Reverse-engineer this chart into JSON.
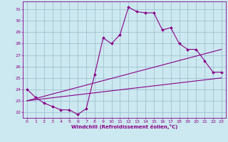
{
  "xlabel": "Windchill (Refroidissement éolien,°C)",
  "background_color": "#cce8f0",
  "line_color": "#880088",
  "grid_color": "#99bbcc",
  "xlim": [
    -0.5,
    23.5
  ],
  "ylim": [
    21.5,
    31.7
  ],
  "yticks": [
    22,
    23,
    24,
    25,
    26,
    27,
    28,
    29,
    30,
    31
  ],
  "xticks": [
    0,
    1,
    2,
    3,
    4,
    5,
    6,
    7,
    8,
    9,
    10,
    11,
    12,
    13,
    14,
    15,
    16,
    17,
    18,
    19,
    20,
    21,
    22,
    23
  ],
  "hours": [
    0,
    1,
    2,
    3,
    4,
    5,
    6,
    7,
    8,
    9,
    10,
    11,
    12,
    13,
    14,
    15,
    16,
    17,
    18,
    19,
    20,
    21,
    22,
    23
  ],
  "temp": [
    24.0,
    23.3,
    22.8,
    22.5,
    22.2,
    22.2,
    21.8,
    22.3,
    25.3,
    28.5,
    28.0,
    28.8,
    31.2,
    30.8,
    30.7,
    30.7,
    29.2,
    29.4,
    28.0,
    27.5,
    27.5,
    26.5,
    25.5,
    25.5
  ],
  "line1_x": [
    0,
    23
  ],
  "line1_y": [
    23.0,
    25.0
  ],
  "line2_x": [
    0,
    23
  ],
  "line2_y": [
    23.0,
    27.5
  ]
}
